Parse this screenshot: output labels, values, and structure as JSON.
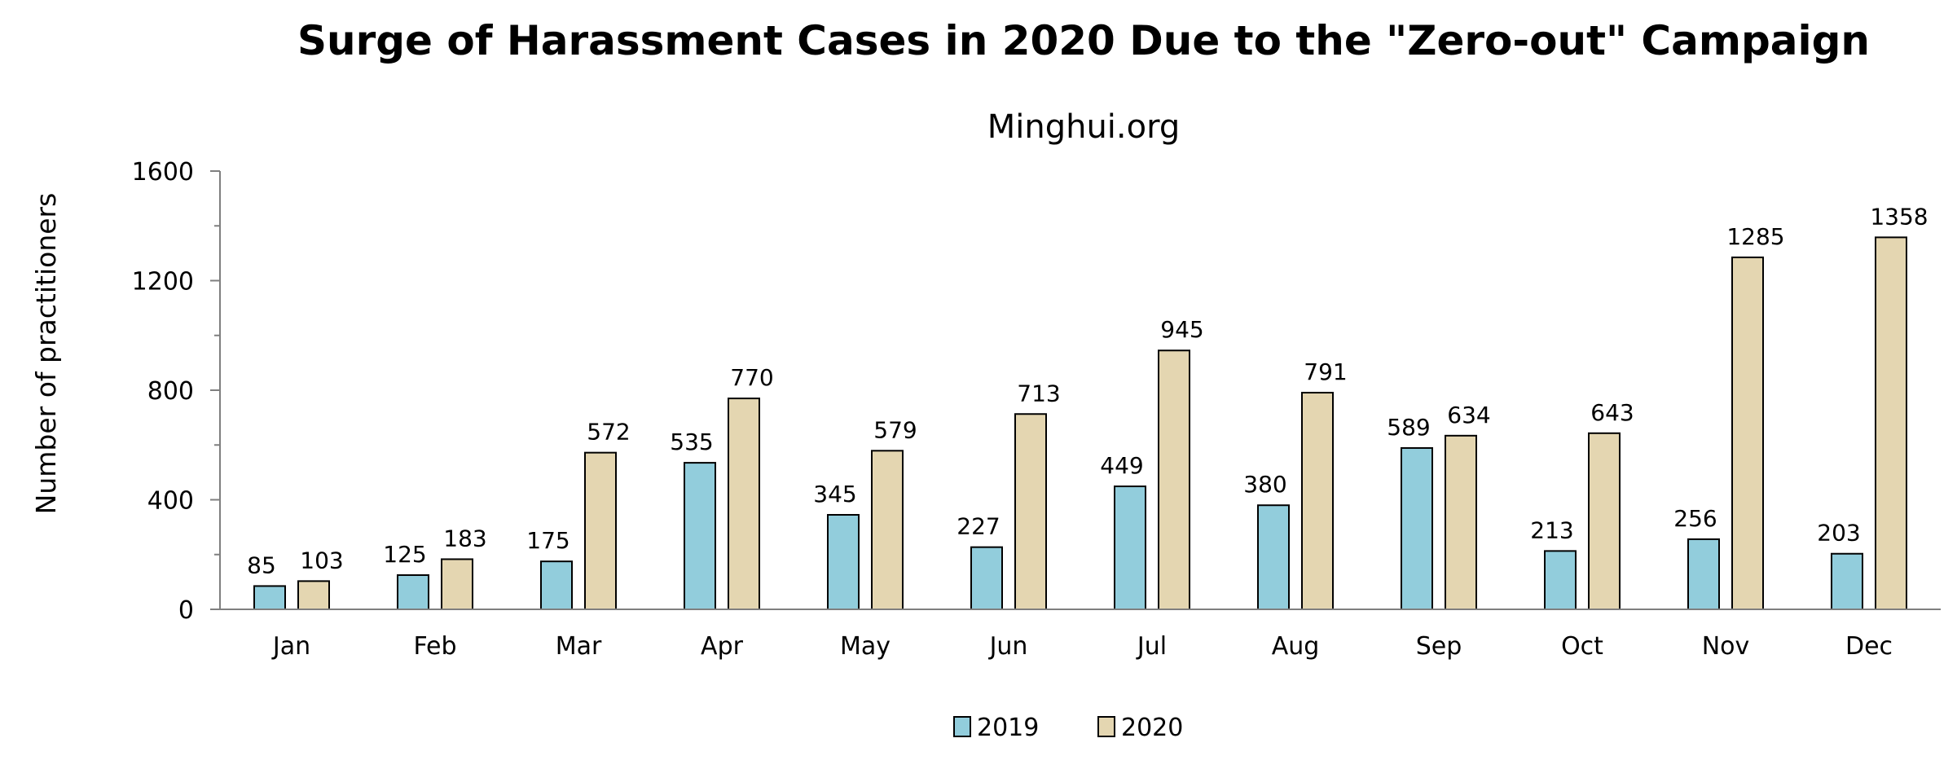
{
  "colors": {
    "series_2019": "#92CDDC",
    "series_2020": "#E4D6B1",
    "bar_stroke": "#000000",
    "axis": "#7F7F7F",
    "text": "#000000",
    "background": "#FFFFFF"
  },
  "chart_data": {
    "type": "bar",
    "title": "Surge of Harassment Cases in 2020 Due to the \"Zero-out\" Campaign",
    "subtitle": "Minghui.org",
    "xlabel": "",
    "ylabel": "Number of practitioners",
    "categories": [
      "Jan",
      "Feb",
      "Mar",
      "Apr",
      "May",
      "Jun",
      "Jul",
      "Aug",
      "Sep",
      "Oct",
      "Nov",
      "Dec"
    ],
    "series": [
      {
        "name": "2019",
        "values": [
          85,
          125,
          175,
          535,
          345,
          227,
          449,
          380,
          589,
          213,
          256,
          203
        ]
      },
      {
        "name": "2020",
        "values": [
          103,
          183,
          572,
          770,
          579,
          713,
          945,
          791,
          634,
          643,
          1285,
          1358
        ]
      }
    ],
    "ylim": [
      0,
      1600
    ],
    "yticks": [
      "0",
      "400",
      "800",
      "1200",
      "1600"
    ],
    "grid": false,
    "legend_position": "bottom-center",
    "data_labels": true
  }
}
